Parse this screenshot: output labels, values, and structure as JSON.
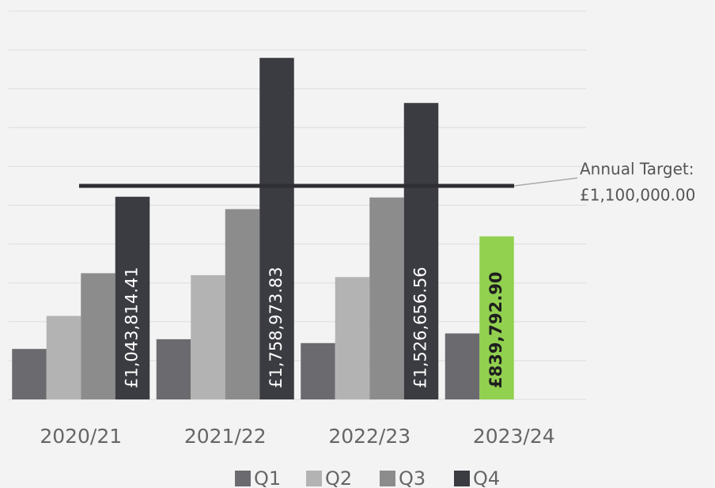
{
  "chart_data": {
    "type": "bar",
    "categories": [
      "2020/21",
      "2021/22",
      "2022/23",
      "2023/24"
    ],
    "series": [
      {
        "name": "Q1",
        "color": "#6b6a6e",
        "values": [
          260000,
          310000,
          290000,
          340000
        ]
      },
      {
        "name": "Q2",
        "color": "#b3b3b3",
        "values": [
          430000,
          640000,
          630000,
          839792.9
        ],
        "point_colors": [
          null,
          null,
          null,
          "#92d050"
        ],
        "value_labels": [
          null,
          null,
          null,
          "£839,792.90"
        ]
      },
      {
        "name": "Q3",
        "color": "#8c8c8c",
        "values": [
          650000,
          980000,
          1040000,
          null
        ]
      },
      {
        "name": "Q4",
        "color": "#3b3b42",
        "values": [
          1043814.41,
          1758973.83,
          1526656.56,
          null
        ],
        "value_labels": [
          "£1,043,814.41",
          "£1,758,973.83",
          "£1,526,656.56",
          null
        ]
      }
    ],
    "target": {
      "value": 1100000,
      "label": [
        "Annual Target:",
        "£1,100,000.00"
      ],
      "color": "#2e2e33"
    },
    "ylim": [
      0,
      2000000
    ],
    "yticks": [
      0,
      200000,
      400000,
      600000,
      800000,
      1000000,
      1200000,
      1400000,
      1600000,
      1800000,
      2000000
    ],
    "grid": true,
    "legend": "bottom"
  }
}
